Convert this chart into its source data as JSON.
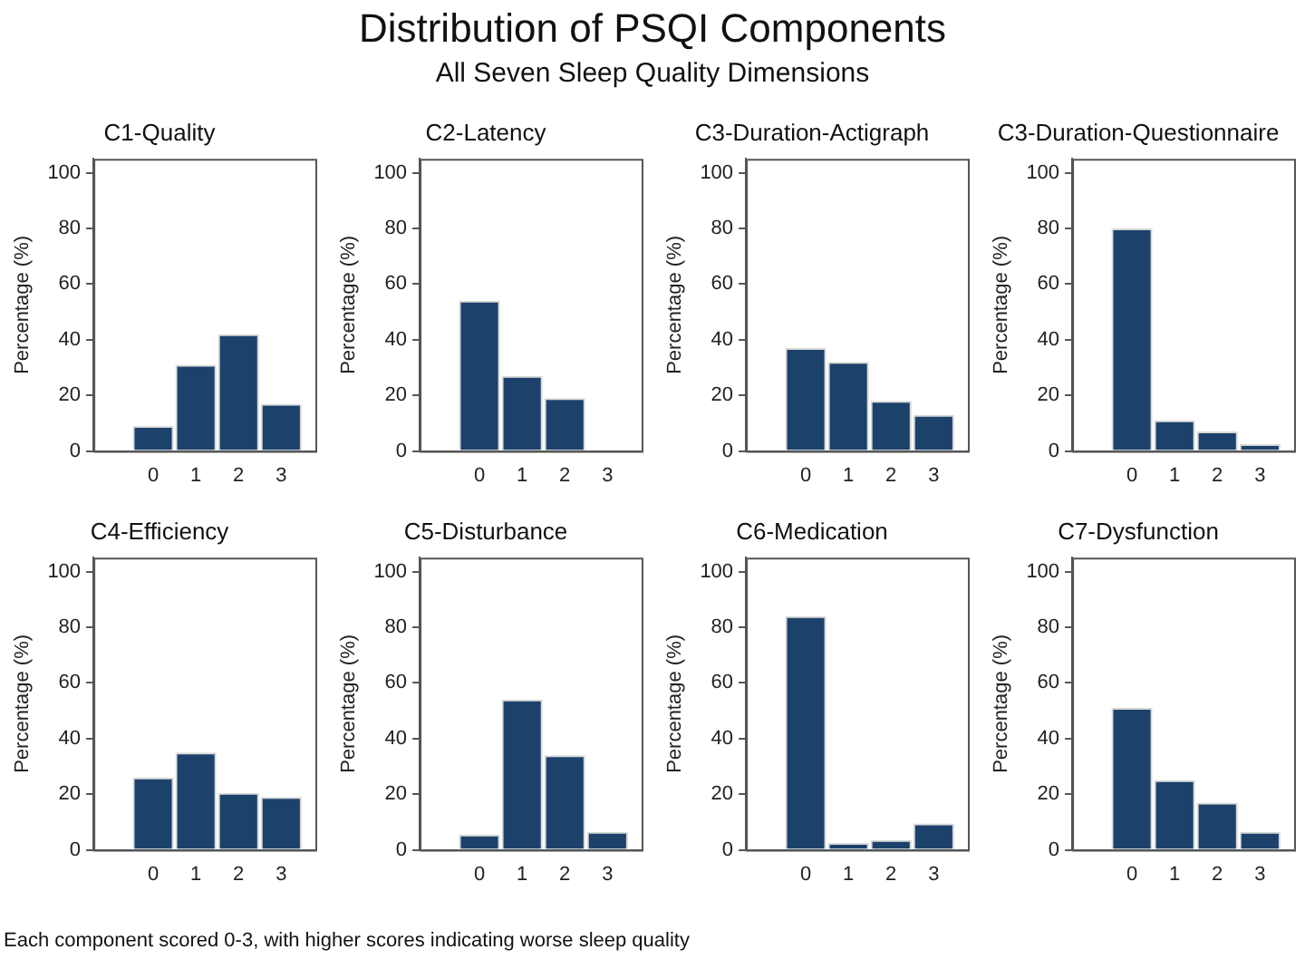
{
  "chart_data": [
    {
      "type": "other",
      "title": "Distribution of PSQI Components",
      "subtitle": "All Seven Sleep Quality Dimensions",
      "annotations": [
        "Each component scored 0-3, with higher scores indicating worse sleep quality"
      ]
    },
    {
      "type": "bar",
      "title": "C1-Quality",
      "ylabel": "Percentage (%)",
      "x": [
        0,
        1,
        2,
        3
      ],
      "values": [
        9,
        31,
        42,
        17
      ],
      "color": "#1c426b",
      "xlim": [
        -1.4,
        3.8
      ],
      "xticks": [
        0,
        1,
        2,
        3
      ],
      "ylim": [
        0,
        105
      ],
      "yticks": [
        0,
        20,
        40,
        60,
        80,
        100
      ],
      "grid": false,
      "legend": false
    },
    {
      "type": "bar",
      "title": "C2-Latency",
      "ylabel": "Percentage (%)",
      "x": [
        0,
        1,
        2,
        3
      ],
      "values": [
        54,
        27,
        19,
        0
      ],
      "color": "#1c426b",
      "xlim": [
        -1.4,
        3.8
      ],
      "xticks": [
        0,
        1,
        2,
        3
      ],
      "ylim": [
        0,
        105
      ],
      "yticks": [
        0,
        20,
        40,
        60,
        80,
        100
      ],
      "grid": false,
      "legend": false
    },
    {
      "type": "bar",
      "title": "C3-Duration-Actigraph",
      "ylabel": "Percentage (%)",
      "x": [
        0,
        1,
        2,
        3
      ],
      "values": [
        37,
        32,
        18,
        13
      ],
      "color": "#1c426b",
      "xlim": [
        -1.4,
        3.8
      ],
      "xticks": [
        0,
        1,
        2,
        3
      ],
      "ylim": [
        0,
        105
      ],
      "yticks": [
        0,
        20,
        40,
        60,
        80,
        100
      ],
      "grid": false,
      "legend": false
    },
    {
      "type": "bar",
      "title": "C3-Duration-Questionnaire",
      "ylabel": "Percentage (%)",
      "x": [
        0,
        1,
        2,
        3
      ],
      "values": [
        80,
        11,
        7,
        2.5
      ],
      "color": "#1c426b",
      "xlim": [
        -1.4,
        3.8
      ],
      "xticks": [
        0,
        1,
        2,
        3
      ],
      "ylim": [
        0,
        105
      ],
      "yticks": [
        0,
        20,
        40,
        60,
        80,
        100
      ],
      "grid": false,
      "legend": false
    },
    {
      "type": "bar",
      "title": "C4-Efficiency",
      "ylabel": "Percentage (%)",
      "x": [
        0,
        1,
        2,
        3
      ],
      "values": [
        26,
        35,
        20.5,
        19
      ],
      "color": "#1c426b",
      "xlim": [
        -1.4,
        3.8
      ],
      "xticks": [
        0,
        1,
        2,
        3
      ],
      "ylim": [
        0,
        105
      ],
      "yticks": [
        0,
        20,
        40,
        60,
        80,
        100
      ],
      "grid": false,
      "legend": false
    },
    {
      "type": "bar",
      "title": "C5-Disturbance",
      "ylabel": "Percentage (%)",
      "x": [
        0,
        1,
        2,
        3
      ],
      "values": [
        5.5,
        54,
        34,
        6.5
      ],
      "color": "#1c426b",
      "xlim": [
        -1.4,
        3.8
      ],
      "xticks": [
        0,
        1,
        2,
        3
      ],
      "ylim": [
        0,
        105
      ],
      "yticks": [
        0,
        20,
        40,
        60,
        80,
        100
      ],
      "grid": false,
      "legend": false
    },
    {
      "type": "bar",
      "title": "C6-Medication",
      "ylabel": "Percentage (%)",
      "x": [
        0,
        1,
        2,
        3
      ],
      "values": [
        84,
        2.5,
        3.5,
        9.5
      ],
      "color": "#1c426b",
      "xlim": [
        -1.4,
        3.8
      ],
      "xticks": [
        0,
        1,
        2,
        3
      ],
      "ylim": [
        0,
        105
      ],
      "yticks": [
        0,
        20,
        40,
        60,
        80,
        100
      ],
      "grid": false,
      "legend": false
    },
    {
      "type": "bar",
      "title": "C7-Dysfunction",
      "ylabel": "Percentage (%)",
      "x": [
        0,
        1,
        2,
        3
      ],
      "values": [
        51,
        25,
        17,
        6.5
      ],
      "color": "#1c426b",
      "xlim": [
        -1.4,
        3.8
      ],
      "xticks": [
        0,
        1,
        2,
        3
      ],
      "ylim": [
        0,
        105
      ],
      "yticks": [
        0,
        20,
        40,
        60,
        80,
        100
      ],
      "grid": false,
      "legend": false
    }
  ]
}
